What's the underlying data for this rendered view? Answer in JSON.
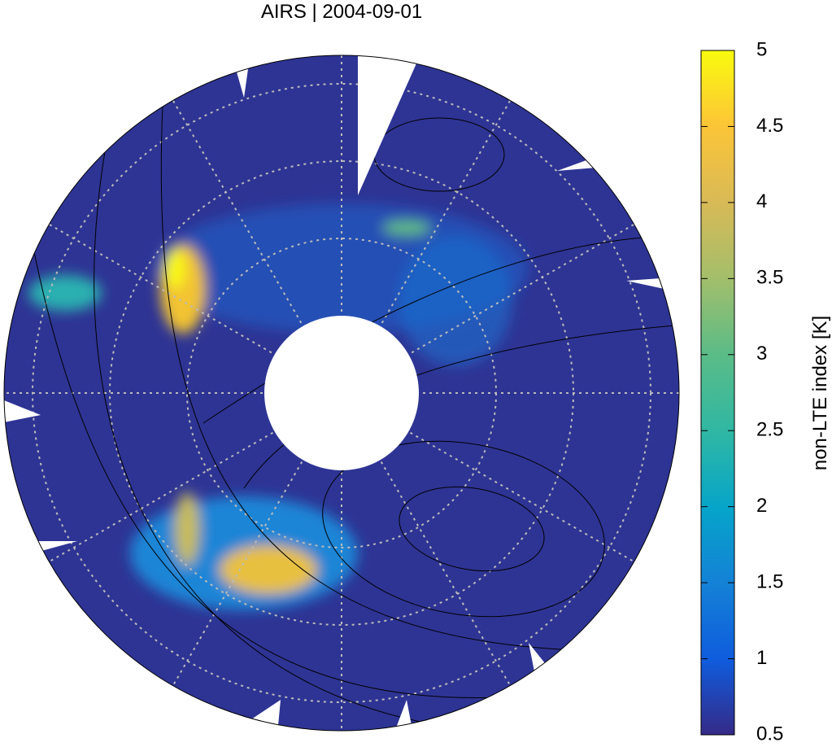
{
  "title": "AIRS | 2004-09-01",
  "colorbar": {
    "label": "non-LTE index [K]",
    "lim": [
      0.5,
      5
    ],
    "ticks": [
      0.5,
      1,
      1.5,
      2,
      2.5,
      3,
      3.5,
      4,
      4.5,
      5
    ]
  }
}
